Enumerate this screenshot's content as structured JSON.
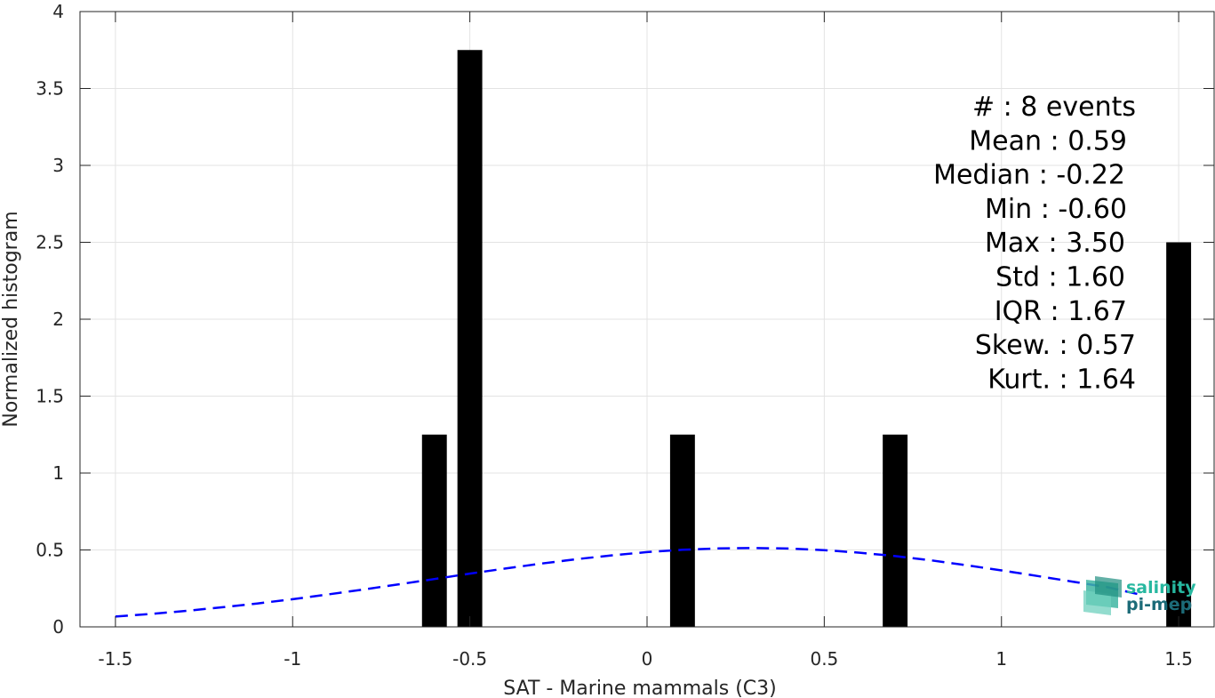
{
  "chart_data": {
    "type": "bar",
    "xlabel": "SAT - Marine mammals (C3)",
    "ylabel": "Normalized histogram",
    "xlim": [
      -1.6,
      1.6
    ],
    "ylim": [
      0,
      4
    ],
    "xticks": [
      -1.5,
      -1,
      -0.5,
      0,
      0.5,
      1,
      1.5
    ],
    "xtick_labels": [
      "-1.5",
      "-1",
      "-0.5",
      "0",
      "0.5",
      "1",
      "1.5"
    ],
    "yticks": [
      0,
      0.5,
      1,
      1.5,
      2,
      2.5,
      3,
      3.5,
      4
    ],
    "ytick_labels": [
      "0",
      "0.5",
      "1",
      "1.5",
      "2",
      "2.5",
      "3",
      "3.5",
      "4"
    ],
    "grid": true,
    "bar_color": "#000000",
    "bars": [
      {
        "x": -0.6,
        "height": 1.25
      },
      {
        "x": -0.5,
        "height": 3.75
      },
      {
        "x": 0.1,
        "height": 1.25
      },
      {
        "x": 0.7,
        "height": 1.25
      },
      {
        "x": 1.5,
        "height": 2.5
      }
    ],
    "bar_width": 0.07,
    "fit_curve": {
      "style": "dashed",
      "color": "#0000ff",
      "x": [
        -1.5,
        -1.4,
        -1.3,
        -1.2,
        -1.1,
        -1.0,
        -0.9,
        -0.8,
        -0.7,
        -0.6,
        -0.5,
        -0.4,
        -0.3,
        -0.2,
        -0.1,
        0.0,
        0.1,
        0.2,
        0.3,
        0.4,
        0.5,
        0.6,
        0.7,
        0.8,
        0.9,
        1.0,
        1.1,
        1.2,
        1.3,
        1.4
      ],
      "y": [
        0.067,
        0.084,
        0.104,
        0.127,
        0.152,
        0.18,
        0.211,
        0.243,
        0.277,
        0.311,
        0.346,
        0.379,
        0.411,
        0.44,
        0.465,
        0.486,
        0.501,
        0.51,
        0.513,
        0.509,
        0.499,
        0.482,
        0.46,
        0.433,
        0.401,
        0.367,
        0.331,
        0.294,
        0.257,
        0.205
      ]
    },
    "stats": [
      "#  : 8 events",
      "Mean : 0.59",
      "Median : -0.22",
      "Min : -0.60",
      "Max : 3.50",
      "Std : 1.60",
      "IQR : 1.67",
      "Skew. : 0.57",
      "Kurt. : 1.64"
    ]
  },
  "logo": {
    "line1": "salinity",
    "line2": "pi-mep",
    "color1": "#27b8a0",
    "color2": "#1c6b78"
  }
}
